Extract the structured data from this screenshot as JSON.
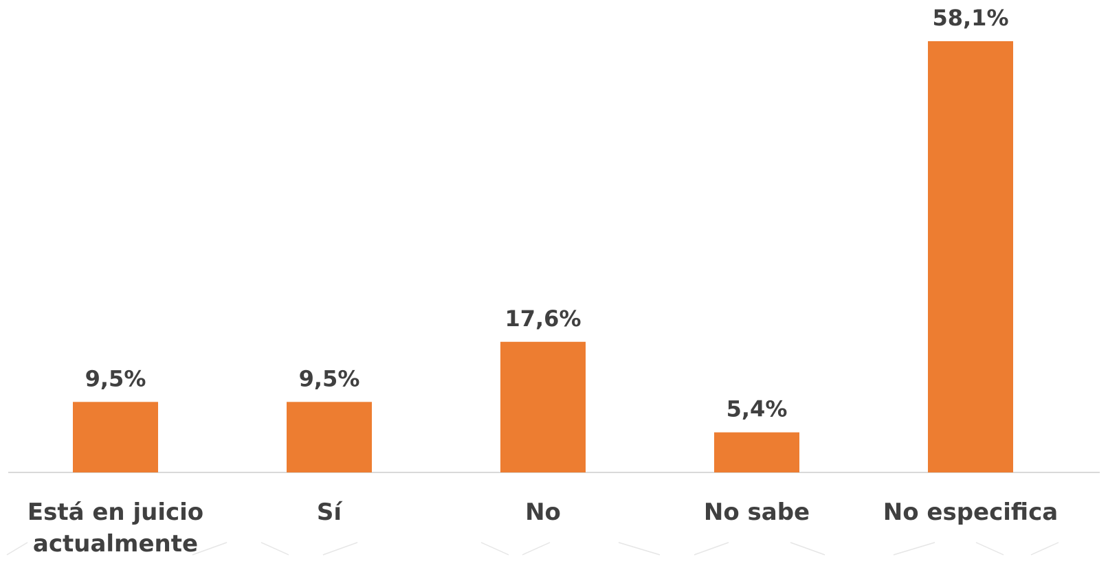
{
  "chart_data": {
    "type": "bar",
    "categories": [
      "Está en juicio actualmente",
      "Sí",
      "No",
      "No sabe",
      "No especifica"
    ],
    "category_lines": [
      [
        "Está en juicio",
        "actualmente"
      ],
      [
        "Sí"
      ],
      [
        "No"
      ],
      [
        "No sabe"
      ],
      [
        "No especifica"
      ]
    ],
    "values": [
      9.5,
      9.5,
      17.6,
      5.4,
      58.1
    ],
    "data_labels": [
      "9,5%",
      "9,5%",
      "17,6%",
      "5,4%",
      "58,1%"
    ],
    "title": "",
    "xlabel": "",
    "ylabel": "",
    "ylim": [
      0,
      58.1
    ],
    "grid": false,
    "legend": "none",
    "colors": {
      "bar": "#ed7d31",
      "text": "#404040",
      "axis": "#d9d9d9"
    }
  }
}
